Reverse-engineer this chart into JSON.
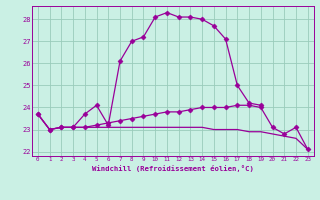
{
  "xlabel": "Windchill (Refroidissement éolien,°C)",
  "background_color": "#caf0e4",
  "grid_color": "#99ccbb",
  "line_color": "#990099",
  "hours": [
    0,
    1,
    2,
    3,
    4,
    5,
    6,
    7,
    8,
    9,
    10,
    11,
    12,
    13,
    14,
    15,
    16,
    17,
    18,
    19,
    20,
    21,
    22,
    23
  ],
  "series1": [
    23.7,
    23.0,
    23.1,
    23.1,
    23.7,
    24.1,
    23.2,
    26.1,
    27.0,
    27.2,
    28.1,
    28.3,
    28.1,
    28.1,
    28.0,
    27.7,
    27.1,
    25.0,
    24.2,
    24.1,
    null,
    null,
    null,
    null
  ],
  "series1_markers": [
    true,
    true,
    false,
    false,
    true,
    true,
    true,
    true,
    true,
    true,
    true,
    true,
    true,
    true,
    false,
    false,
    true,
    true,
    false,
    true,
    false,
    false,
    false,
    false
  ],
  "series2": [
    23.7,
    23.0,
    23.1,
    23.1,
    23.1,
    23.2,
    23.3,
    23.4,
    23.5,
    23.6,
    23.7,
    23.8,
    23.8,
    23.9,
    24.0,
    24.0,
    24.0,
    24.1,
    24.1,
    24.0,
    23.1,
    22.8,
    23.1,
    22.1
  ],
  "series3": [
    23.7,
    23.0,
    23.1,
    23.1,
    23.1,
    23.1,
    23.1,
    23.1,
    23.1,
    23.1,
    23.1,
    23.1,
    23.1,
    23.1,
    23.1,
    23.0,
    23.0,
    23.0,
    22.9,
    22.9,
    22.8,
    22.7,
    22.6,
    22.1
  ],
  "ylim": [
    21.8,
    28.6
  ],
  "yticks": [
    22,
    23,
    24,
    25,
    26,
    27,
    28
  ],
  "marker": "D",
  "markersize": 2.5
}
